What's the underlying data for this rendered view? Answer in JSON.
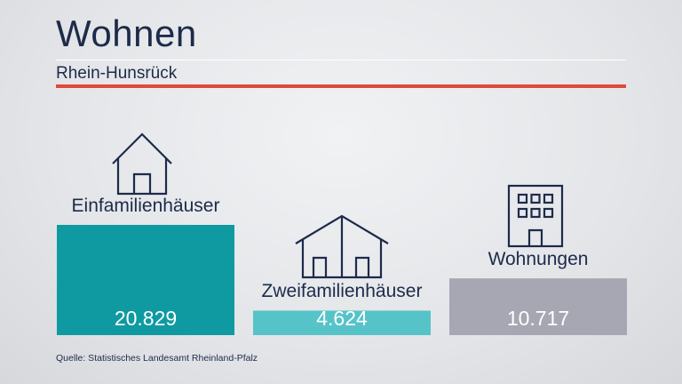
{
  "header": {
    "title": "Wohnen",
    "subtitle": "Rhein-Hunsrück"
  },
  "source": "Quelle: Statistisches Landesamt Rheinland-Pfalz",
  "colors": {
    "accent_rule": "#e04a3a",
    "text": "#1d2b4a"
  },
  "chart_data": {
    "type": "bar",
    "title": "Wohnen",
    "subtitle": "Rhein-Hunsrück",
    "categories": [
      "Einfamilienhäuser",
      "Zweifamilienhäuser",
      "Wohnungen"
    ],
    "values": [
      20829,
      4624,
      10717
    ],
    "value_labels": [
      "20.829",
      "4.624",
      "10.717"
    ],
    "colors": [
      "#0f9aa1",
      "#55c3c8",
      "#a7a6b3"
    ],
    "icons": [
      "house-icon",
      "double-house-icon",
      "apartment-building-icon"
    ],
    "axis_visible": false,
    "grid": false
  }
}
